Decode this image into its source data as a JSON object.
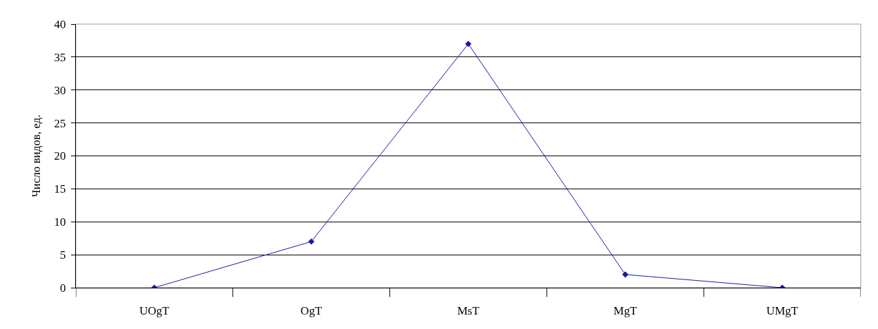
{
  "chart_data": {
    "type": "line",
    "ylabel": "Число видов, ед.",
    "categories": [
      "UOgT",
      "OgT",
      "MsT",
      "MgT",
      "UMgT"
    ],
    "series": [
      {
        "color": "#1a1aa0",
        "values": [
          0,
          7,
          37,
          2,
          0
        ]
      }
    ],
    "ylim": [
      0,
      40
    ],
    "yticks": [
      0,
      5,
      10,
      15,
      20,
      25,
      30,
      35,
      40
    ],
    "grid": "y",
    "marker": "diamond",
    "line_style": "solid"
  }
}
